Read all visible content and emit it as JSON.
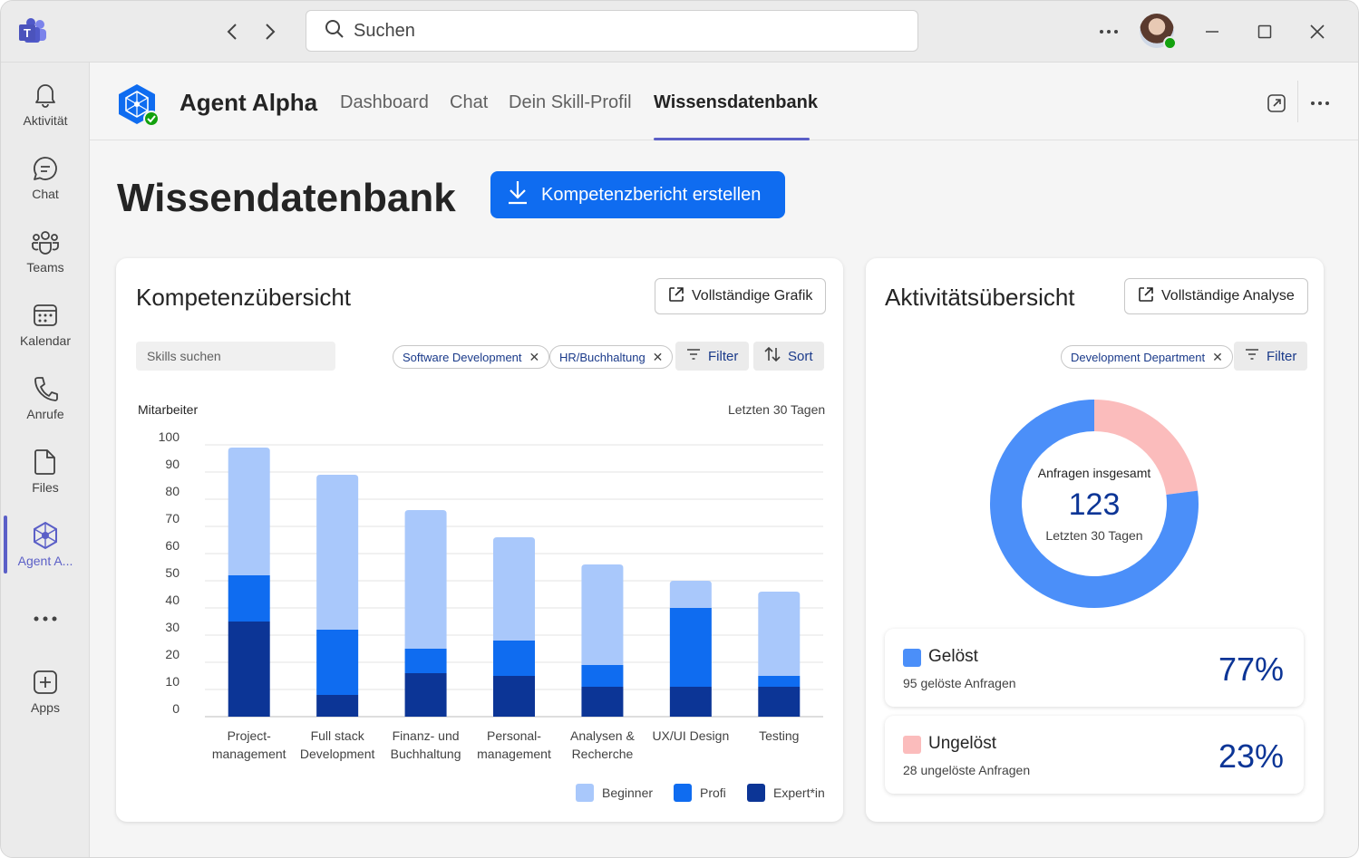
{
  "titlebar": {
    "search_placeholder": "Suchen",
    "icons": [
      "teams-logo-icon",
      "back-arrow-icon",
      "forward-arrow-icon",
      "search-icon",
      "more-icon",
      "minimize-icon",
      "maximize-icon",
      "close-icon"
    ]
  },
  "rail": {
    "items": [
      {
        "label": "Aktivität",
        "icon": "bell-icon"
      },
      {
        "label": "Chat",
        "icon": "chat-icon"
      },
      {
        "label": "Teams",
        "icon": "teams-icon"
      },
      {
        "label": "Kalendar",
        "icon": "calendar-icon"
      },
      {
        "label": "Anrufe",
        "icon": "phone-icon"
      },
      {
        "label": "Files",
        "icon": "file-icon"
      },
      {
        "label": "Agent A...",
        "icon": "agent-icon"
      },
      {
        "label": "Apps",
        "icon": "add-app-icon"
      }
    ],
    "active_index": 6
  },
  "app_header": {
    "title": "Agent Alpha",
    "tabs": [
      "Dashboard",
      "Chat",
      "Dein Skill-Profil",
      "Wissensdatenbank"
    ],
    "active_tab": "Wissensdatenbank"
  },
  "page": {
    "title": "Wissendatenbank",
    "primary_button": "Kompetenzbericht erstellen"
  },
  "competence_card": {
    "title": "Kompetenzübersicht",
    "full_chart_button": "Vollständige Grafik",
    "search_placeholder": "Skills suchen",
    "chips": [
      "Software Development",
      "HR/Buchhaltung"
    ],
    "filter_label": "Filter",
    "sort_label": "Sort",
    "y_axis_label": "Mitarbeiter",
    "period_label": "Letzten 30 Tagen"
  },
  "chart_data": {
    "type": "bar",
    "stacked": true,
    "categories": [
      "Project-\nmanagement",
      "Full stack\nDevelopment",
      "Finanz- und\nBuchhaltung",
      "Personal-\nmanagement",
      "Analysen &\nRecherche",
      "UX/UI Design",
      "Testing"
    ],
    "series": [
      {
        "name": "Expert*in",
        "color": "#0c3596",
        "values": [
          35,
          8,
          16,
          15,
          11,
          11,
          11
        ]
      },
      {
        "name": "Profi",
        "color": "#0f6cf0",
        "values": [
          17,
          24,
          9,
          13,
          8,
          29,
          4
        ]
      },
      {
        "name": "Beginner",
        "color": "#a9c8fb",
        "values": [
          47,
          57,
          51,
          38,
          37,
          10,
          31
        ]
      }
    ],
    "legend_order": [
      "Beginner",
      "Profi",
      "Expert*in"
    ],
    "ylabel": "Mitarbeiter",
    "yticks": [
      0,
      10,
      20,
      30,
      40,
      50,
      60,
      70,
      80,
      90,
      100
    ],
    "ylim": [
      0,
      100
    ],
    "grid": true,
    "legend_position": "bottom-right"
  },
  "activity_card": {
    "title": "Aktivitätsübersicht",
    "full_analysis_button": "Vollständige Analyse",
    "chip": "Development Department",
    "filter_label": "Filter",
    "donut": {
      "center_title": "Anfragen insgesamt",
      "center_value": "123",
      "center_sub": "Letzten 30 Tagen",
      "segments": [
        {
          "label": "Gelöst",
          "value": 77,
          "color": "#4b8ff9"
        },
        {
          "label": "Ungelöst",
          "value": 23,
          "color": "#fbbcbc"
        }
      ]
    },
    "stats": [
      {
        "title": "Gelöst",
        "subtitle": "95 gelöste Anfragen",
        "percent": "77%",
        "color": "#4b8ff9"
      },
      {
        "title": "Ungelöst",
        "subtitle": "28 ungelöste Anfragen",
        "percent": "23%",
        "color": "#fbbcbc"
      }
    ]
  }
}
